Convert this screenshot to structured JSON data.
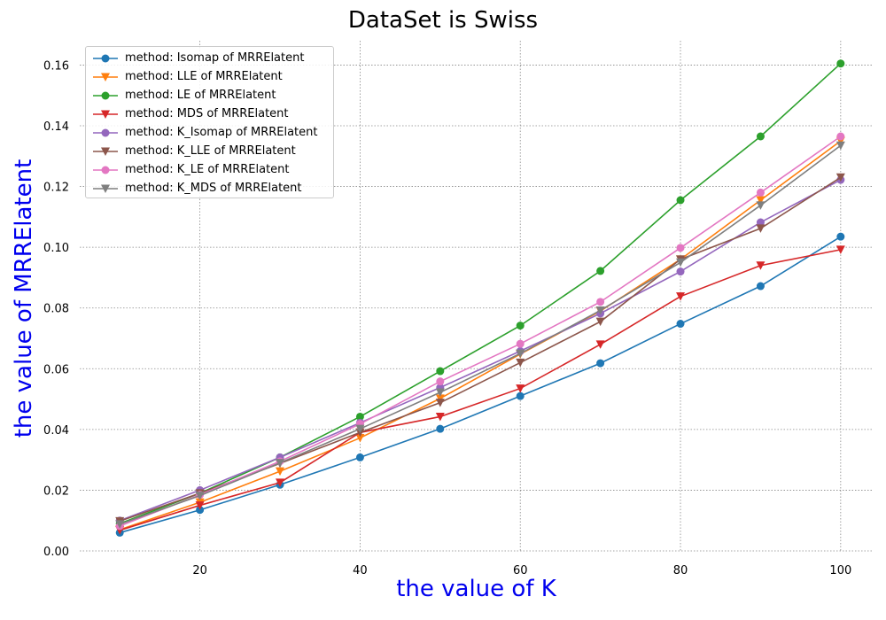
{
  "chart_data": {
    "type": "line",
    "title": "DataSet is Swiss",
    "xlabel": "the value of K",
    "ylabel": "the value of MRRElatent",
    "xlim": [
      5,
      104
    ],
    "ylim": [
      0,
      0.168
    ],
    "xticks": [
      20,
      40,
      60,
      80,
      100
    ],
    "yticks": [
      0.0,
      0.02,
      0.04,
      0.06,
      0.08,
      0.1,
      0.12,
      0.14,
      0.16
    ],
    "grid": true,
    "legend_position": "top-left",
    "x": [
      10,
      20,
      30,
      40,
      50,
      60,
      70,
      80,
      90,
      100
    ],
    "series": [
      {
        "name": "method: Isomap of MRRElatent",
        "color": "#1f77b4",
        "marker": "circle",
        "values": [
          0.006,
          0.0135,
          0.0218,
          0.0308,
          0.0402,
          0.051,
          0.0618,
          0.0748,
          0.0872,
          0.1035
        ]
      },
      {
        "name": "method: LLE of MRRElatent",
        "color": "#ff7f0e",
        "marker": "triangle-down",
        "values": [
          0.007,
          0.016,
          0.0262,
          0.0372,
          0.0502,
          0.0648,
          0.079,
          0.096,
          0.1155,
          0.135
        ]
      },
      {
        "name": "method: LE of MRRElatent",
        "color": "#2ca02c",
        "marker": "circle",
        "values": [
          0.009,
          0.019,
          0.0308,
          0.0442,
          0.0592,
          0.0742,
          0.0922,
          0.1155,
          0.1365,
          0.1605
        ]
      },
      {
        "name": "method: MDS of MRRElatent",
        "color": "#d62728",
        "marker": "triangle-down",
        "values": [
          0.0068,
          0.015,
          0.0225,
          0.039,
          0.0442,
          0.0535,
          0.068,
          0.0838,
          0.094,
          0.0992
        ]
      },
      {
        "name": "method: K_Isomap of MRRElatent",
        "color": "#9467bd",
        "marker": "circle",
        "values": [
          0.01,
          0.02,
          0.0308,
          0.0422,
          0.0538,
          0.0658,
          0.0782,
          0.092,
          0.1082,
          0.1222
        ]
      },
      {
        "name": "method: K_LLE of MRRElatent",
        "color": "#8c564b",
        "marker": "triangle-down",
        "values": [
          0.0098,
          0.019,
          0.0288,
          0.039,
          0.0488,
          0.062,
          0.0755,
          0.096,
          0.1062,
          0.123
        ]
      },
      {
        "name": "method: K_LE of MRRElatent",
        "color": "#e377c2",
        "marker": "circle",
        "values": [
          0.0082,
          0.0185,
          0.0295,
          0.0418,
          0.0558,
          0.0682,
          0.082,
          0.0998,
          0.118,
          0.1365
        ]
      },
      {
        "name": "method: K_MDS of MRRElatent",
        "color": "#7f7f7f",
        "marker": "triangle-down",
        "values": [
          0.0088,
          0.0182,
          0.029,
          0.0402,
          0.0522,
          0.065,
          0.0792,
          0.095,
          0.1138,
          0.1335
        ]
      }
    ]
  }
}
